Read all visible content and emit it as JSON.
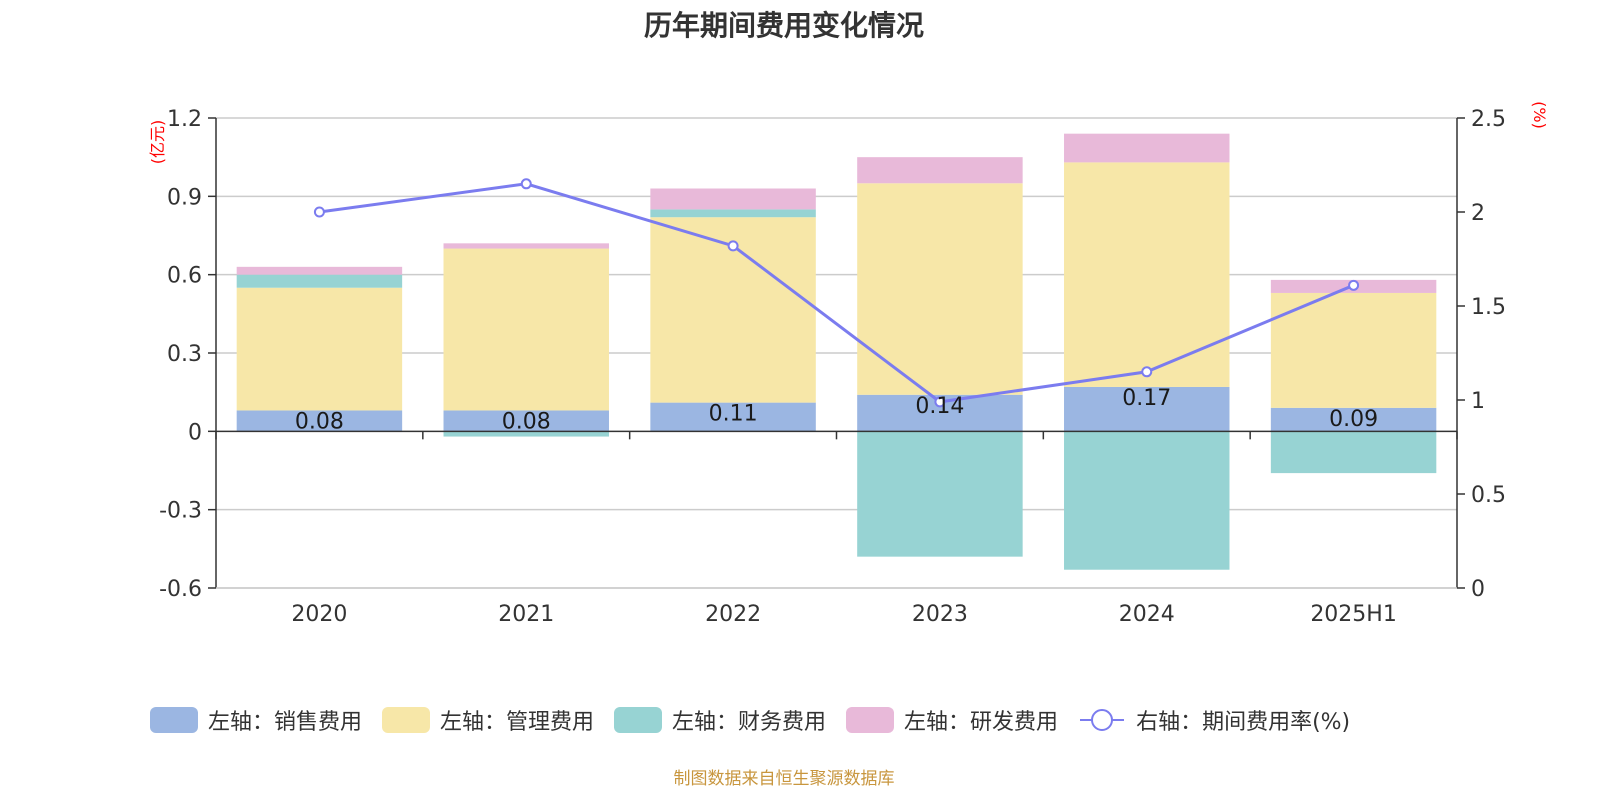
{
  "title": "历年期间费用变化情况",
  "source_note": "制图数据来自恒生聚源数据库",
  "colors": {
    "sales": "#9bb6e2",
    "admin": "#f7e7a8",
    "finance": "#97d3d3",
    "rnd": "#e8b9d9",
    "rate_line": "#7b7cef",
    "axis_unit": "#ff0000"
  },
  "chart_data": {
    "type": "bar",
    "categories": [
      "2020",
      "2021",
      "2022",
      "2023",
      "2024",
      "2025H1"
    ],
    "left_axis": {
      "unit": "(亿元)",
      "ylim": [
        -0.6,
        1.2
      ],
      "ticks": [
        "-0.6",
        "-0.3",
        "0",
        "0.3",
        "0.6",
        "0.9",
        "1.2"
      ]
    },
    "right_axis": {
      "unit": "(%)",
      "ylim": [
        0,
        2.5
      ],
      "ticks": [
        "0",
        "0.5",
        "1",
        "1.5",
        "2",
        "2.5"
      ]
    },
    "grid": true,
    "legend_position": "bottom",
    "series": [
      {
        "name": "左轴：销售费用",
        "axis": "left",
        "kind": "bar",
        "color_key": "sales",
        "values": [
          0.08,
          0.08,
          0.11,
          0.14,
          0.17,
          0.09
        ],
        "labels": [
          "0.08",
          "0.08",
          "0.11",
          "0.14",
          "0.17",
          "0.09"
        ]
      },
      {
        "name": "左轴：管理费用",
        "axis": "left",
        "kind": "bar",
        "color_key": "admin",
        "values": [
          0.47,
          0.62,
          0.71,
          0.81,
          0.86,
          0.44
        ]
      },
      {
        "name": "左轴：财务费用",
        "axis": "left",
        "kind": "bar",
        "color_key": "finance",
        "values": [
          0.05,
          -0.02,
          0.03,
          -0.48,
          -0.53,
          -0.16
        ]
      },
      {
        "name": "左轴：研发费用",
        "axis": "left",
        "kind": "bar",
        "color_key": "rnd",
        "values": [
          0.03,
          0.02,
          0.08,
          0.1,
          0.11,
          0.05
        ]
      },
      {
        "name": "右轴：期间费用率(%)",
        "axis": "right",
        "kind": "line",
        "color_key": "rate_line",
        "values": [
          2.0,
          2.15,
          1.82,
          0.99,
          1.15,
          1.61
        ]
      }
    ]
  }
}
